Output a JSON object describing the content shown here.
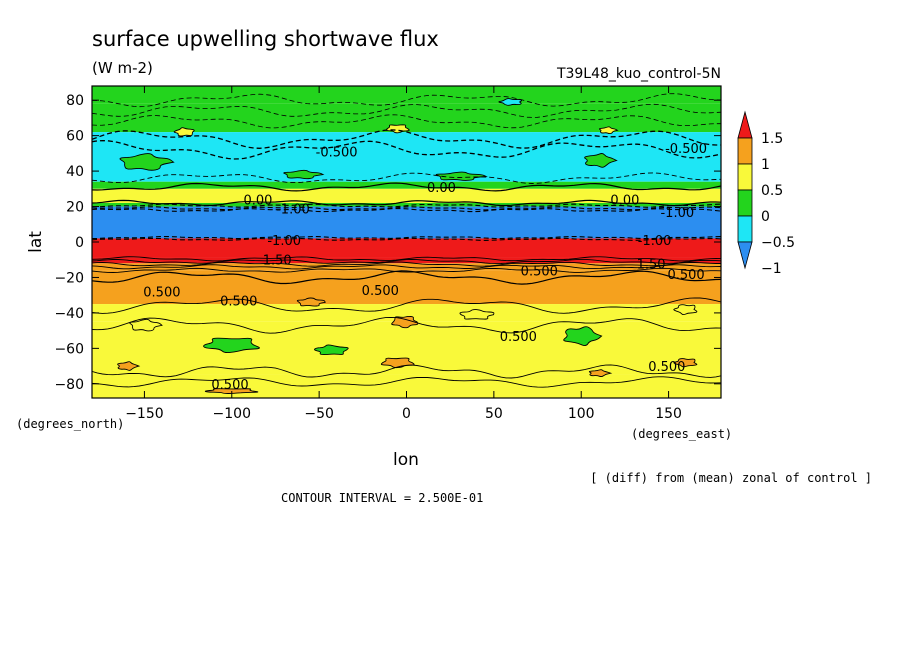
{
  "chart_data": {
    "type": "heatmap",
    "title": "surface upwelling shortwave flux",
    "units": "(W m-2)",
    "run_label": "T39L48_kuo_control-5N",
    "xlabel": "lon",
    "ylabel": "lat",
    "x_units": "(degrees_east)",
    "y_units": "(degrees_north)",
    "xlim": [
      -180,
      180
    ],
    "ylim": [
      -88,
      88
    ],
    "x_ticks": [
      -150,
      -100,
      -50,
      0,
      50,
      100,
      150
    ],
    "y_ticks": [
      80,
      60,
      40,
      20,
      0,
      -20,
      -40,
      -60,
      -80
    ],
    "colorbar": {
      "levels": [
        -1,
        -0.5,
        0,
        0.5,
        1,
        1.5
      ],
      "labels": [
        "1.5",
        "1",
        "0.5",
        "0",
        "−0.5",
        "−1"
      ],
      "colors": [
        "#2c8ef0",
        "#1ee6f5",
        "#23d41d",
        "#f9f93a",
        "#f5a11e",
        "#ee1a1a"
      ]
    },
    "zonal_bands": [
      {
        "lat_from": 88,
        "lat_to": 78,
        "value": -0.25
      },
      {
        "lat_from": 78,
        "lat_to": 62,
        "value": -0.25
      },
      {
        "lat_from": 62,
        "lat_to": 34,
        "value": -0.6
      },
      {
        "lat_from": 34,
        "lat_to": 30,
        "value": -0.25
      },
      {
        "lat_from": 30,
        "lat_to": 22,
        "value": 0.1
      },
      {
        "lat_from": 22,
        "lat_to": 20,
        "value": -0.25
      },
      {
        "lat_from": 20,
        "lat_to": 2,
        "value": -1.1
      },
      {
        "lat_from": 2,
        "lat_to": -9,
        "value": 1.6
      },
      {
        "lat_from": -9,
        "lat_to": -12,
        "value": 1.2
      },
      {
        "lat_from": -12,
        "lat_to": -16,
        "value": 0.7
      },
      {
        "lat_from": -16,
        "lat_to": -35,
        "value": 0.55
      },
      {
        "lat_from": -35,
        "lat_to": -45,
        "value": 0.4
      },
      {
        "lat_from": -45,
        "lat_to": -75,
        "value": 0.2
      },
      {
        "lat_from": -75,
        "lat_to": -88,
        "value": 0.3
      }
    ],
    "contour_labels": [
      {
        "text": "-0.500",
        "lon": -40,
        "lat": 51
      },
      {
        "text": "-0.500",
        "lon": 160,
        "lat": 53
      },
      {
        "text": "0.00",
        "lon": 20,
        "lat": 31
      },
      {
        "text": "0.00",
        "lon": -85,
        "lat": 24
      },
      {
        "text": "0.00",
        "lon": 125,
        "lat": 24
      },
      {
        "text": "-1.00",
        "lon": -65,
        "lat": 19
      },
      {
        "text": "-1.00",
        "lon": 155,
        "lat": 17
      },
      {
        "text": "-1.00",
        "lon": -70,
        "lat": 1
      },
      {
        "text": "-1.00",
        "lon": 142,
        "lat": 1
      },
      {
        "text": "1.50",
        "lon": -74,
        "lat": -10
      },
      {
        "text": "1.50",
        "lon": 140,
        "lat": -12
      },
      {
        "text": "0.500",
        "lon": 76,
        "lat": -16
      },
      {
        "text": "0.500",
        "lon": 160,
        "lat": -18
      },
      {
        "text": "0.500",
        "lon": -140,
        "lat": -28
      },
      {
        "text": "0.500",
        "lon": -96,
        "lat": -33
      },
      {
        "text": "0.500",
        "lon": -15,
        "lat": -27
      },
      {
        "text": "0.500",
        "lon": 64,
        "lat": -53
      },
      {
        "text": "0.500",
        "lon": 149,
        "lat": -70
      },
      {
        "text": "0.500",
        "lon": -101,
        "lat": -80
      }
    ]
  },
  "footer": {
    "contour_interval": "CONTOUR INTERVAL = 2.500E-01",
    "diff_note": "[ (diff) from (mean) zonal of control ]"
  }
}
